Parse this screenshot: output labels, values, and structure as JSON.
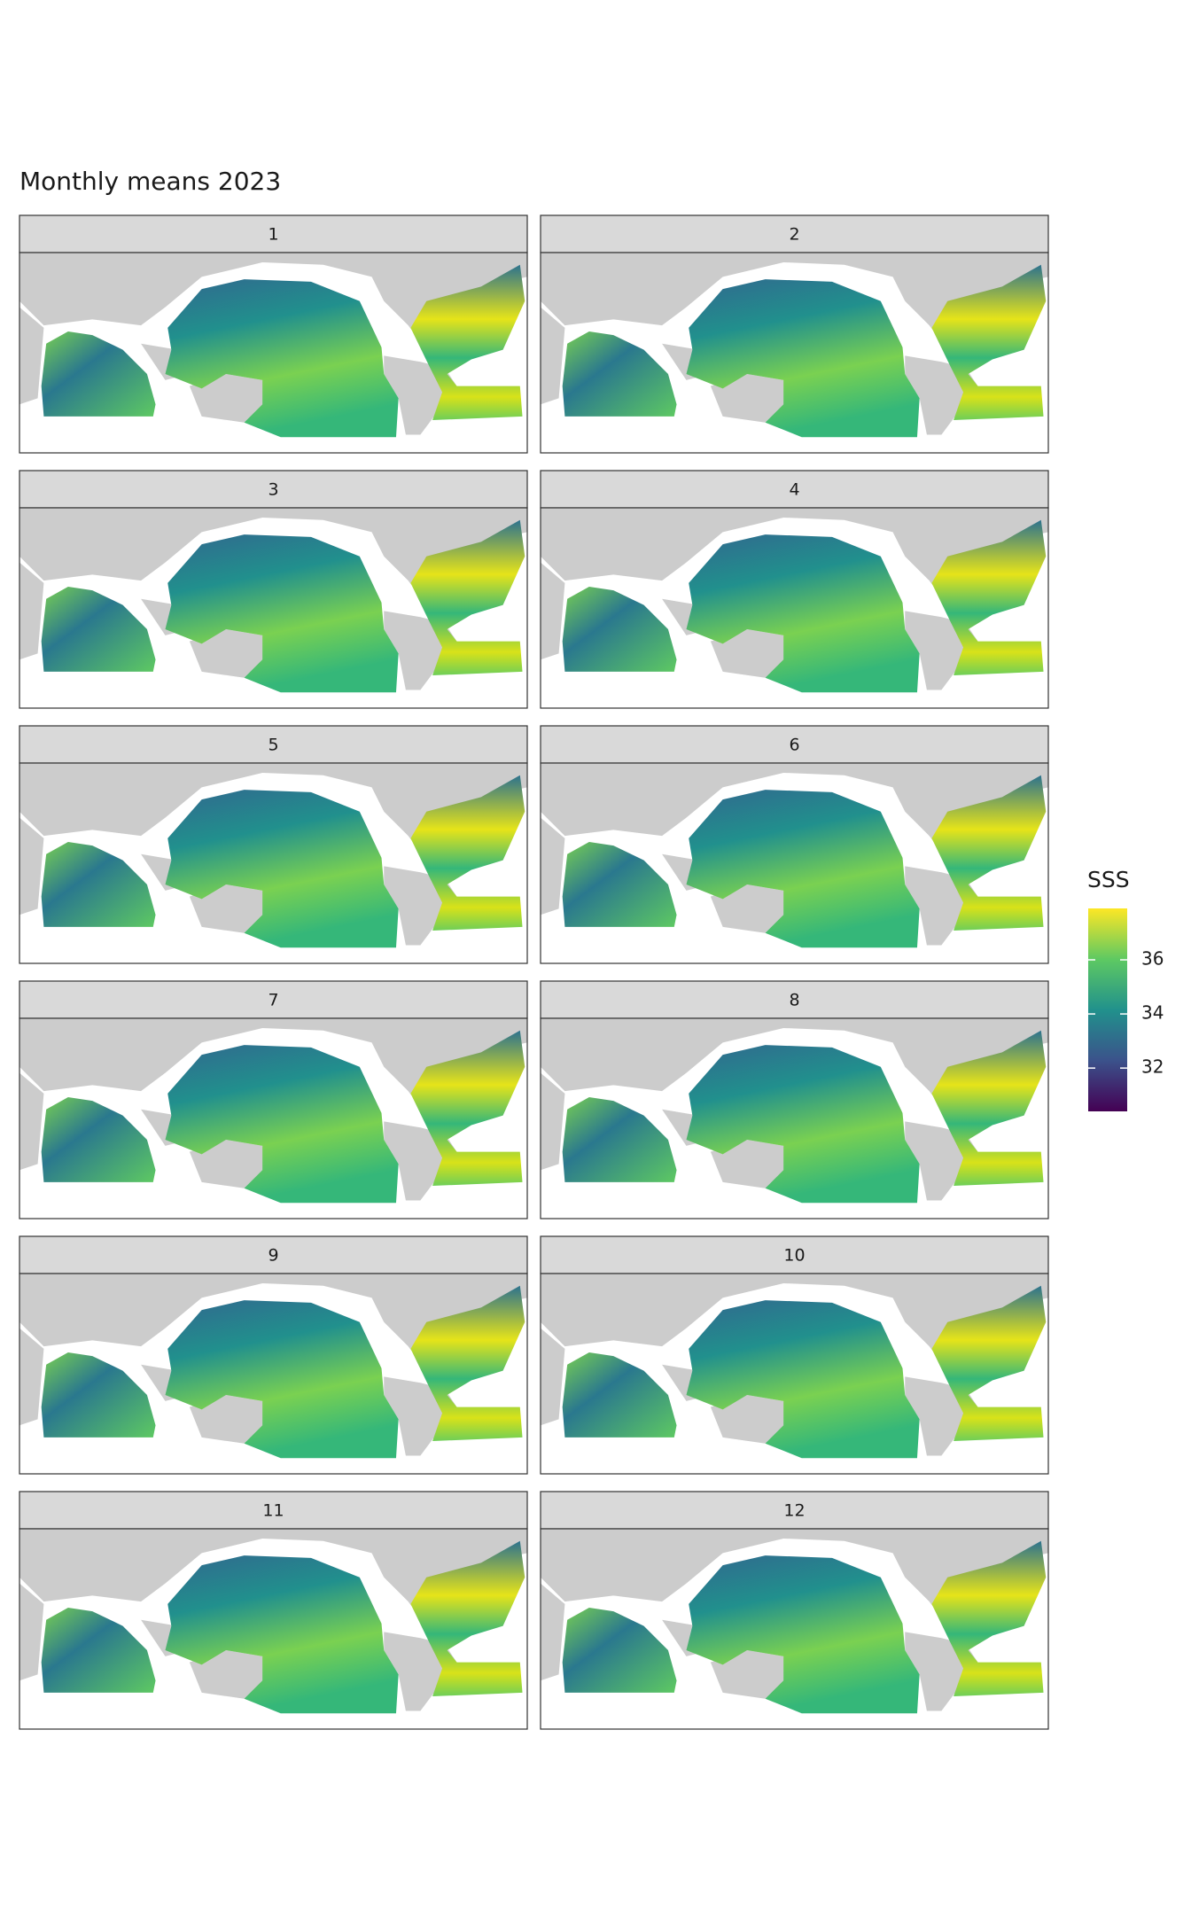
{
  "chart_data": {
    "type": "raster-facets",
    "title": "Monthly means 2023",
    "facets": [
      "1",
      "2",
      "3",
      "4",
      "5",
      "6",
      "7",
      "8",
      "9",
      "10",
      "11",
      "12"
    ],
    "legend_title": "SSS",
    "colorlim": [
      30.4,
      37.9
    ],
    "colorticks": [
      32,
      34,
      36
    ],
    "colors": [
      "#440154",
      "#3b528b",
      "#21918c",
      "#5ec962",
      "#fde725"
    ],
    "land_color": "#cccccc"
  }
}
